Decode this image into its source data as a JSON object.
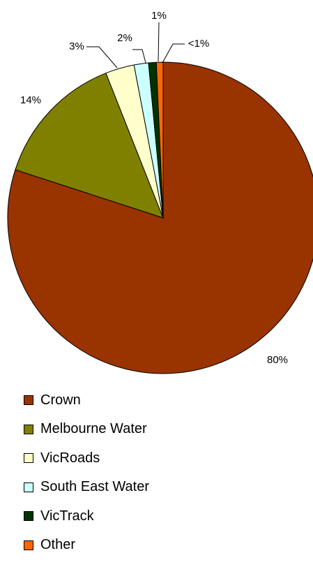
{
  "chart_data": {
    "type": "pie",
    "title": "",
    "start_angle_deg": 0,
    "direction": "clockwise",
    "slices": [
      {
        "name": "Crown",
        "value": 80,
        "label": "80%",
        "color": "#993300"
      },
      {
        "name": "Melbourne Water",
        "value": 14,
        "label": "14%",
        "color": "#808000"
      },
      {
        "name": "VicRoads",
        "value": 3,
        "label": "3%",
        "color": "#FFFFCC"
      },
      {
        "name": "South East Water",
        "value": 1.5,
        "label": "2%",
        "color": "#CCFFFF"
      },
      {
        "name": "VicTrack",
        "value": 0.8,
        "label": "1%",
        "color": "#003300"
      },
      {
        "name": "Other",
        "value": 0.7,
        "label": "<1%",
        "color": "#FF6600"
      }
    ],
    "legend_position": "bottom-left"
  }
}
